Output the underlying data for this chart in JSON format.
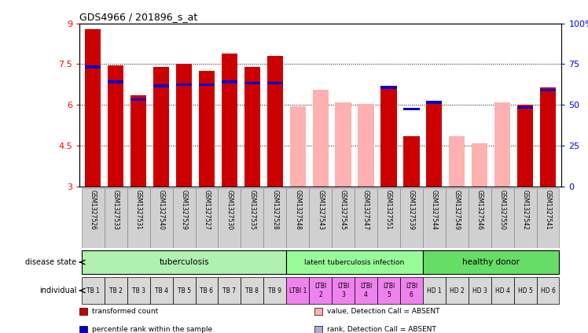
{
  "title": "GDS4966 / 201896_s_at",
  "samples": [
    "GSM1327526",
    "GSM1327533",
    "GSM1327531",
    "GSM1327540",
    "GSM1327529",
    "GSM1327527",
    "GSM1327530",
    "GSM1327535",
    "GSM1327528",
    "GSM1327548",
    "GSM1327543",
    "GSM1327545",
    "GSM1327547",
    "GSM1327551",
    "GSM1327539",
    "GSM1327544",
    "GSM1327549",
    "GSM1327546",
    "GSM1327550",
    "GSM1327542",
    "GSM1327541"
  ],
  "red_values": [
    8.8,
    7.45,
    6.35,
    7.4,
    7.5,
    7.25,
    7.9,
    7.4,
    7.8,
    5.95,
    6.55,
    6.1,
    6.05,
    6.65,
    4.85,
    6.05,
    4.85,
    4.6,
    6.1,
    6.0,
    6.65
  ],
  "blue_values": [
    7.35,
    6.8,
    6.15,
    6.65,
    6.7,
    6.7,
    6.8,
    6.75,
    6.75,
    null,
    null,
    null,
    null,
    6.6,
    5.8,
    6.05,
    null,
    null,
    null,
    5.85,
    6.5
  ],
  "pink_values": [
    null,
    null,
    null,
    null,
    null,
    null,
    null,
    null,
    null,
    5.95,
    6.55,
    6.1,
    6.05,
    null,
    null,
    null,
    4.85,
    4.6,
    6.1,
    null,
    null
  ],
  "lblue_values": [
    null,
    null,
    null,
    null,
    null,
    null,
    null,
    null,
    null,
    null,
    null,
    null,
    null,
    null,
    null,
    null,
    null,
    null,
    null,
    null,
    null
  ],
  "detection_absent": [
    false,
    false,
    false,
    false,
    false,
    false,
    false,
    false,
    false,
    true,
    true,
    true,
    true,
    false,
    false,
    false,
    true,
    true,
    true,
    false,
    false
  ],
  "individual_labels": [
    "TB 1",
    "TB 2",
    "TB 3",
    "TB 4",
    "TB 5",
    "TB 6",
    "TB 7",
    "TB 8",
    "TB 9",
    "LTBI 1",
    "LTBI\n2",
    "LTBI\n3",
    "LTBI\n4",
    "LTBI\n5",
    "LTBI\n6",
    "HD 1",
    "HD 2",
    "HD 3",
    "HD 4",
    "HD 5",
    "HD 6"
  ],
  "individual_colors": [
    "#d8d8d8",
    "#d8d8d8",
    "#d8d8d8",
    "#d8d8d8",
    "#d8d8d8",
    "#d8d8d8",
    "#d8d8d8",
    "#d8d8d8",
    "#d8d8d8",
    "#ee82ee",
    "#ee82ee",
    "#ee82ee",
    "#ee82ee",
    "#ee82ee",
    "#ee82ee",
    "#d8d8d8",
    "#d8d8d8",
    "#d8d8d8",
    "#d8d8d8",
    "#d8d8d8",
    "#d8d8d8"
  ],
  "ylim_left": [
    3,
    9
  ],
  "ylim_right": [
    0,
    100
  ],
  "yticks_left": [
    3,
    4.5,
    6,
    7.5,
    9
  ],
  "ytick_labels_left": [
    "3",
    "4.5",
    "6",
    "7.5",
    "9"
  ],
  "yticks_right": [
    0,
    25,
    50,
    75,
    100
  ],
  "ytick_labels_right": [
    "0",
    "25",
    "50",
    "75",
    "100%"
  ],
  "bar_color_red": "#cc0000",
  "bar_color_blue": "#0000cc",
  "bar_color_pink": "#ffb0b0",
  "bar_color_lblue": "#aaaadd",
  "bar_width": 0.7,
  "grid_lines": [
    4.5,
    6.0,
    7.5
  ],
  "tb_color": "#b0f0b0",
  "ltbi_color": "#98fb98",
  "hd_color": "#66dd66",
  "sample_bg": "#d0d0d0"
}
